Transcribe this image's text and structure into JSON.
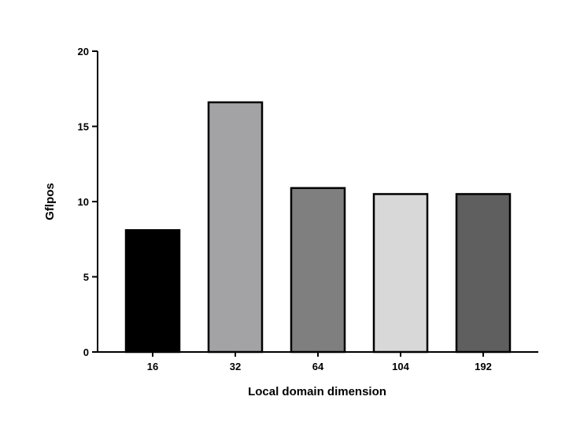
{
  "chart_data": {
    "type": "bar",
    "categories": [
      "16",
      "32",
      "64",
      "104",
      "192"
    ],
    "values": [
      8.1,
      16.6,
      10.9,
      10.5,
      10.5
    ],
    "colors": [
      "#000000",
      "#a3a3a6",
      "#7f7f7f",
      "#d8d8d8",
      "#5f5f5f"
    ],
    "title": "",
    "xlabel": "Local domain dimension",
    "ylabel": "Gflpos",
    "ylim": [
      0,
      20
    ],
    "yticks": [
      "0",
      "5",
      "10",
      "15",
      "20"
    ],
    "grid": false,
    "legend": "none"
  }
}
